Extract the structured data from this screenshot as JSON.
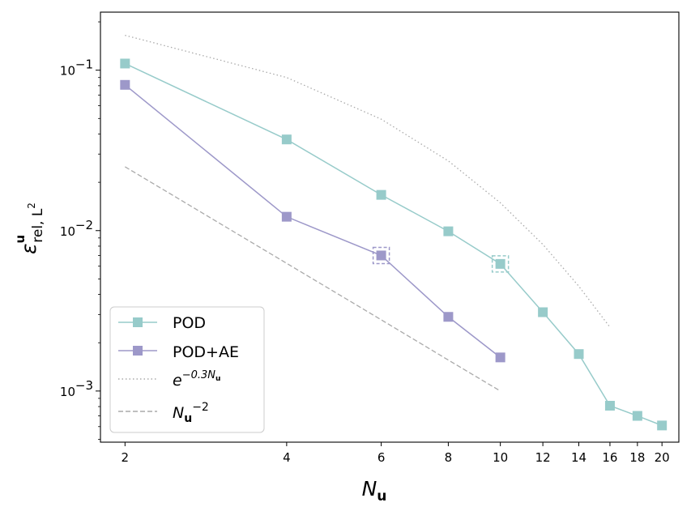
{
  "chart_data": {
    "type": "line",
    "title": "",
    "xscale": "log",
    "yscale": "log",
    "xlim": [
      1.8,
      21.5
    ],
    "ylim": [
      0.00048,
      0.23
    ],
    "xticks": [
      2,
      4,
      6,
      8,
      10,
      12,
      14,
      16,
      18,
      20
    ],
    "xtick_labels": [
      "2",
      "4",
      "6",
      "8",
      "10",
      "12",
      "14",
      "16",
      "18",
      "20"
    ],
    "yticks": [
      0.001,
      0.01,
      0.1
    ],
    "ytick_labels": [
      "10",
      "10",
      "10"
    ],
    "ytick_exponents": [
      "−3",
      "−2",
      "−1"
    ],
    "xlabel": {
      "main": "N",
      "sub": "u"
    },
    "ylabel": {
      "main": "ε",
      "sup": "u",
      "sub": "rel, L",
      "subsup": "2"
    },
    "legend_position": "lower-left",
    "series": [
      {
        "name": "POD",
        "color": "#97cbca",
        "marker": "square",
        "linestyle": "solid",
        "x": [
          2,
          4,
          6,
          8,
          10,
          12,
          14,
          16,
          18,
          20
        ],
        "values": [
          0.11,
          0.037,
          0.0167,
          0.0099,
          0.0062,
          0.0031,
          0.0017,
          0.00081,
          0.0007,
          0.00061
        ]
      },
      {
        "name": "POD+AE",
        "color": "#9d98c9",
        "marker": "square",
        "linestyle": "solid",
        "x": [
          2,
          4,
          6,
          8,
          10
        ],
        "values": [
          0.081,
          0.0122,
          0.007,
          0.0029,
          0.00162
        ]
      },
      {
        "name": "e^{-0.3 N_u}",
        "color": "#aaaaaa",
        "marker": "none",
        "linestyle": "dotted",
        "x": [
          2,
          4,
          6,
          8,
          10,
          12,
          14,
          16
        ],
        "values": [
          0.165,
          0.09,
          0.0495,
          0.0272,
          0.0149,
          0.0082,
          0.0045,
          0.0025
        ]
      },
      {
        "name": "N_u^{-2}",
        "color": "#aaaaaa",
        "marker": "none",
        "linestyle": "dashed",
        "x": [
          2,
          4,
          6,
          8,
          10
        ],
        "values": [
          0.025,
          0.00625,
          0.00278,
          0.00156,
          0.001
        ]
      }
    ],
    "highlights": [
      {
        "series": "POD+AE",
        "x": 6,
        "value": 0.007
      },
      {
        "series": "POD",
        "x": 10,
        "value": 0.0062
      }
    ]
  },
  "legend": {
    "pod_label": "POD",
    "podae_label": "POD+AE",
    "exp_base": "e",
    "exp_power": "−0.3N",
    "exp_power_sub": "u",
    "pow_base": "N",
    "pow_base_sub": "u",
    "pow_exponent": "−2"
  }
}
